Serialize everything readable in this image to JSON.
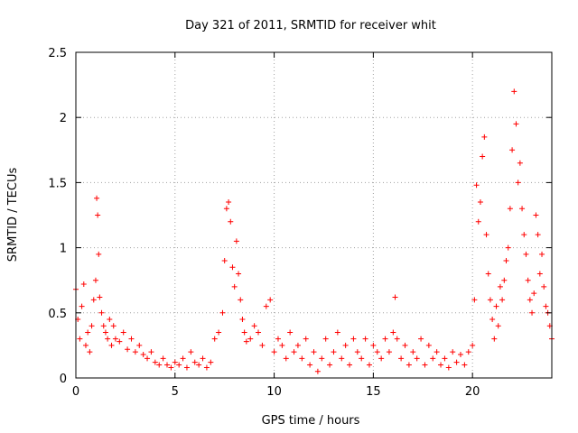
{
  "chart_data": {
    "type": "scatter",
    "title": "Day 321 of 2011, SRMTID for receiver whit",
    "xlabel": "GPS time / hours",
    "ylabel": "SRMTID / TECUs",
    "xlim": [
      0,
      24
    ],
    "ylim": [
      0,
      2.5
    ],
    "x_ticks": [
      0,
      5,
      10,
      15,
      20
    ],
    "y_ticks": [
      0,
      0.5,
      1,
      1.5,
      2,
      2.5
    ],
    "x_tick_labels": [
      "0",
      "5",
      "10",
      "15",
      "20"
    ],
    "y_tick_labels": [
      "0",
      "0.5",
      "1",
      "1.5",
      "2",
      "2.5"
    ],
    "grid": true,
    "marker": "+",
    "series": [
      {
        "name": "SRMTID",
        "color": "#ff0000",
        "x": [
          0.0,
          0.1,
          0.2,
          0.3,
          0.4,
          0.5,
          0.6,
          0.7,
          0.8,
          0.9,
          1.0,
          1.05,
          1.1,
          1.15,
          1.2,
          1.3,
          1.4,
          1.5,
          1.6,
          1.7,
          1.8,
          1.9,
          2.0,
          2.2,
          2.4,
          2.6,
          2.8,
          3.0,
          3.2,
          3.4,
          3.6,
          3.8,
          4.0,
          4.2,
          4.4,
          4.6,
          4.8,
          5.0,
          5.2,
          5.4,
          5.6,
          5.8,
          6.0,
          6.2,
          6.4,
          6.6,
          6.8,
          7.0,
          7.2,
          7.4,
          7.5,
          7.6,
          7.7,
          7.8,
          7.9,
          8.0,
          8.1,
          8.2,
          8.3,
          8.4,
          8.5,
          8.6,
          8.8,
          9.0,
          9.2,
          9.4,
          9.6,
          9.8,
          10.0,
          10.2,
          10.4,
          10.6,
          10.8,
          11.0,
          11.2,
          11.4,
          11.6,
          11.8,
          12.0,
          12.2,
          12.4,
          12.6,
          12.8,
          13.0,
          13.2,
          13.4,
          13.6,
          13.8,
          14.0,
          14.2,
          14.4,
          14.6,
          14.8,
          15.0,
          15.2,
          15.4,
          15.6,
          15.8,
          16.0,
          16.1,
          16.2,
          16.4,
          16.6,
          16.8,
          17.0,
          17.2,
          17.4,
          17.6,
          17.8,
          18.0,
          18.2,
          18.4,
          18.6,
          18.8,
          19.0,
          19.2,
          19.4,
          19.6,
          19.8,
          20.0,
          20.1,
          20.2,
          20.3,
          20.4,
          20.5,
          20.6,
          20.7,
          20.8,
          20.9,
          21.0,
          21.1,
          21.2,
          21.3,
          21.4,
          21.5,
          21.6,
          21.7,
          21.8,
          21.9,
          22.0,
          22.1,
          22.2,
          22.3,
          22.4,
          22.5,
          22.6,
          22.7,
          22.8,
          22.9,
          23.0,
          23.1,
          23.2,
          23.3,
          23.4,
          23.5,
          23.6,
          23.7,
          23.8,
          23.9,
          24.0
        ],
        "y": [
          0.68,
          0.45,
          0.3,
          0.55,
          0.72,
          0.25,
          0.35,
          0.2,
          0.4,
          0.6,
          0.75,
          1.38,
          1.25,
          0.95,
          0.62,
          0.5,
          0.4,
          0.35,
          0.3,
          0.45,
          0.25,
          0.4,
          0.3,
          0.28,
          0.35,
          0.22,
          0.3,
          0.2,
          0.25,
          0.18,
          0.15,
          0.2,
          0.12,
          0.1,
          0.15,
          0.1,
          0.08,
          0.12,
          0.1,
          0.15,
          0.08,
          0.2,
          0.12,
          0.1,
          0.15,
          0.08,
          0.12,
          0.3,
          0.35,
          0.5,
          0.9,
          1.3,
          1.35,
          1.2,
          0.85,
          0.7,
          1.05,
          0.8,
          0.6,
          0.45,
          0.35,
          0.28,
          0.3,
          0.4,
          0.35,
          0.25,
          0.55,
          0.6,
          0.2,
          0.3,
          0.25,
          0.15,
          0.35,
          0.2,
          0.25,
          0.15,
          0.3,
          0.1,
          0.2,
          0.05,
          0.15,
          0.3,
          0.1,
          0.2,
          0.35,
          0.15,
          0.25,
          0.1,
          0.3,
          0.2,
          0.15,
          0.3,
          0.1,
          0.25,
          0.2,
          0.15,
          0.3,
          0.2,
          0.35,
          0.62,
          0.3,
          0.15,
          0.25,
          0.1,
          0.2,
          0.15,
          0.3,
          0.1,
          0.25,
          0.15,
          0.2,
          0.1,
          0.15,
          0.08,
          0.2,
          0.12,
          0.18,
          0.1,
          0.2,
          0.25,
          0.6,
          1.48,
          1.2,
          1.35,
          1.7,
          1.85,
          1.1,
          0.8,
          0.6,
          0.45,
          0.3,
          0.55,
          0.4,
          0.7,
          0.6,
          0.75,
          0.9,
          1.0,
          1.3,
          1.75,
          2.2,
          1.95,
          1.5,
          1.65,
          1.3,
          1.1,
          0.95,
          0.75,
          0.6,
          0.5,
          0.65,
          1.25,
          1.1,
          0.8,
          0.95,
          0.7,
          0.55,
          0.5,
          0.4,
          0.3
        ]
      }
    ]
  }
}
